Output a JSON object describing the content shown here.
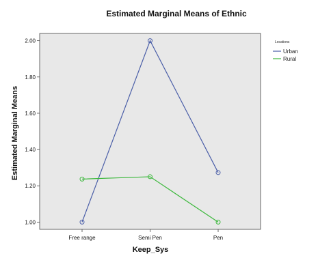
{
  "chart_data": {
    "type": "line",
    "title": "Estimated Marginal Means of Ethnic",
    "xlabel": "Keep_Sys",
    "ylabel": "Estimated Marginal Means",
    "categories": [
      "Free range",
      "Semi Pen",
      "Pen"
    ],
    "ylim": [
      0.96,
      2.04
    ],
    "yticks": [
      1.0,
      1.2,
      1.4,
      1.6,
      1.8,
      2.0
    ],
    "ytick_labels": [
      "1.00",
      "1.20",
      "1.40",
      "1.60",
      "1.80",
      "2.00"
    ],
    "grid": false,
    "legend": {
      "title": "Locations",
      "placement": "right-top"
    },
    "series": [
      {
        "name": "Urban",
        "color": "#4a5ea8",
        "values": [
          1.0,
          2.0,
          1.273
        ]
      },
      {
        "name": "Rural",
        "color": "#3cb83c",
        "values": [
          1.237,
          1.25,
          1.0
        ]
      }
    ],
    "plot_background": "#e8e8e8"
  }
}
